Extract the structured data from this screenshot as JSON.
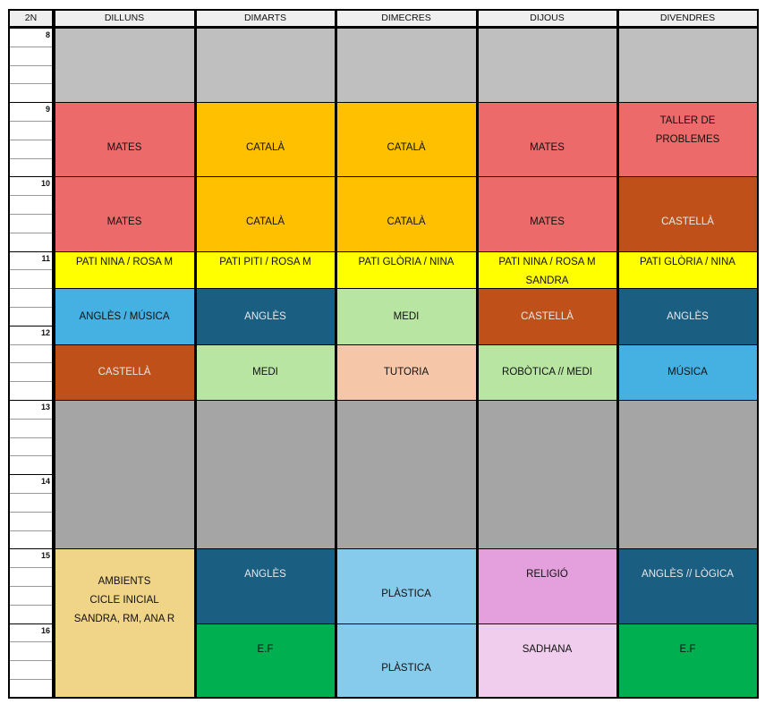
{
  "corner": "2N",
  "days": [
    "DILLUNS",
    "DIMARTS",
    "DIMECRES",
    "DIJOUS",
    "DIVENDRES"
  ],
  "hours": [
    "8",
    "9",
    "10",
    "11",
    "12",
    "13",
    "14",
    "15",
    "16"
  ],
  "colors": {
    "gray": "#bfbfbf",
    "darkgray": "#a5a5a5",
    "red": "#ed6a6a",
    "orange": "#ffc000",
    "brown": "#c0501a",
    "yellow": "#ffff00",
    "lightblue": "#44b1e2",
    "darkblue": "#1a5e82",
    "lightgreen": "#b8e6a2",
    "peach": "#f6c6a8",
    "tan": "#f0d488",
    "skyblue": "#87cbec",
    "pink": "#e4a0dc",
    "lightpink": "#f0cdec",
    "green": "#00b050"
  },
  "schedule": [
    [
      {
        "rows": 4,
        "lines": [],
        "color": "gray"
      },
      {
        "rows": 4,
        "lines": [
          "MATES"
        ],
        "color": "red"
      },
      {
        "rows": 4,
        "lines": [
          "MATES"
        ],
        "color": "red"
      },
      {
        "rows": 2,
        "lines": [
          "PATI NINA / ROSA M"
        ],
        "color": "yellow"
      },
      {
        "rows": 3,
        "lines": [
          "ANGLÈS / MÚSICA"
        ],
        "color": "lightblue"
      },
      {
        "rows": 3,
        "lines": [
          "CASTELLÀ"
        ],
        "color": "brown"
      },
      {
        "rows": 8,
        "lines": [],
        "color": "darkgray"
      },
      {
        "rows": 8,
        "lines": [
          "AMBIENTS",
          "CICLE INICIAL",
          "SANDRA, RM, ANA R"
        ],
        "color": "tan"
      }
    ],
    [
      {
        "rows": 4,
        "lines": [],
        "color": "gray"
      },
      {
        "rows": 4,
        "lines": [
          "CATALÀ"
        ],
        "color": "orange"
      },
      {
        "rows": 4,
        "lines": [
          "CATALÀ"
        ],
        "color": "orange"
      },
      {
        "rows": 2,
        "lines": [
          "PATI PITI / ROSA M"
        ],
        "color": "yellow"
      },
      {
        "rows": 3,
        "lines": [
          "ANGLÈS"
        ],
        "color": "darkblue"
      },
      {
        "rows": 3,
        "lines": [
          "MEDI"
        ],
        "color": "lightgreen"
      },
      {
        "rows": 8,
        "lines": [],
        "color": "darkgray"
      },
      {
        "rows": 4,
        "lines": [
          "ANGLÈS"
        ],
        "color": "darkblue"
      },
      {
        "rows": 4,
        "lines": [
          "E.F"
        ],
        "color": "green"
      }
    ],
    [
      {
        "rows": 4,
        "lines": [],
        "color": "gray"
      },
      {
        "rows": 4,
        "lines": [
          "CATALÀ"
        ],
        "color": "orange"
      },
      {
        "rows": 4,
        "lines": [
          "CATALÀ"
        ],
        "color": "orange"
      },
      {
        "rows": 2,
        "lines": [
          "PATI GLÒRIA / NINA"
        ],
        "color": "yellow"
      },
      {
        "rows": 3,
        "lines": [
          "MEDI"
        ],
        "color": "lightgreen"
      },
      {
        "rows": 3,
        "lines": [
          "TUTORIA"
        ],
        "color": "peach"
      },
      {
        "rows": 8,
        "lines": [],
        "color": "darkgray"
      },
      {
        "rows": 4,
        "lines": [
          "PLÀSTICA"
        ],
        "color": "skyblue"
      },
      {
        "rows": 4,
        "lines": [
          "PLÀSTICA"
        ],
        "color": "skyblue"
      }
    ],
    [
      {
        "rows": 4,
        "lines": [],
        "color": "gray"
      },
      {
        "rows": 4,
        "lines": [
          "MATES"
        ],
        "color": "red"
      },
      {
        "rows": 4,
        "lines": [
          "MATES"
        ],
        "color": "red"
      },
      {
        "rows": 2,
        "lines": [
          "PATI NINA / ROSA M",
          "SANDRA"
        ],
        "color": "yellow"
      },
      {
        "rows": 3,
        "lines": [
          "CASTELLÀ"
        ],
        "color": "brown"
      },
      {
        "rows": 3,
        "lines": [
          "ROBÒTICA // MEDI"
        ],
        "color": "lightgreen"
      },
      {
        "rows": 8,
        "lines": [],
        "color": "darkgray"
      },
      {
        "rows": 4,
        "lines": [
          "RELIGIÓ"
        ],
        "color": "pink"
      },
      {
        "rows": 4,
        "lines": [
          "SADHANA"
        ],
        "color": "lightpink"
      }
    ],
    [
      {
        "rows": 4,
        "lines": [],
        "color": "gray"
      },
      {
        "rows": 4,
        "lines": [
          "TALLER DE",
          "PROBLEMES"
        ],
        "color": "red"
      },
      {
        "rows": 4,
        "lines": [
          "CASTELLÀ"
        ],
        "color": "brown"
      },
      {
        "rows": 2,
        "lines": [
          "PATI GLÒRIA / NINA"
        ],
        "color": "yellow"
      },
      {
        "rows": 3,
        "lines": [
          "ANGLÈS"
        ],
        "color": "darkblue"
      },
      {
        "rows": 3,
        "lines": [
          "MÚSICA"
        ],
        "color": "lightblue"
      },
      {
        "rows": 8,
        "lines": [],
        "color": "darkgray"
      },
      {
        "rows": 4,
        "lines": [
          "ANGLÈS // LÒGICA"
        ],
        "color": "darkblue"
      },
      {
        "rows": 4,
        "lines": [
          "E.F"
        ],
        "color": "green"
      }
    ]
  ]
}
